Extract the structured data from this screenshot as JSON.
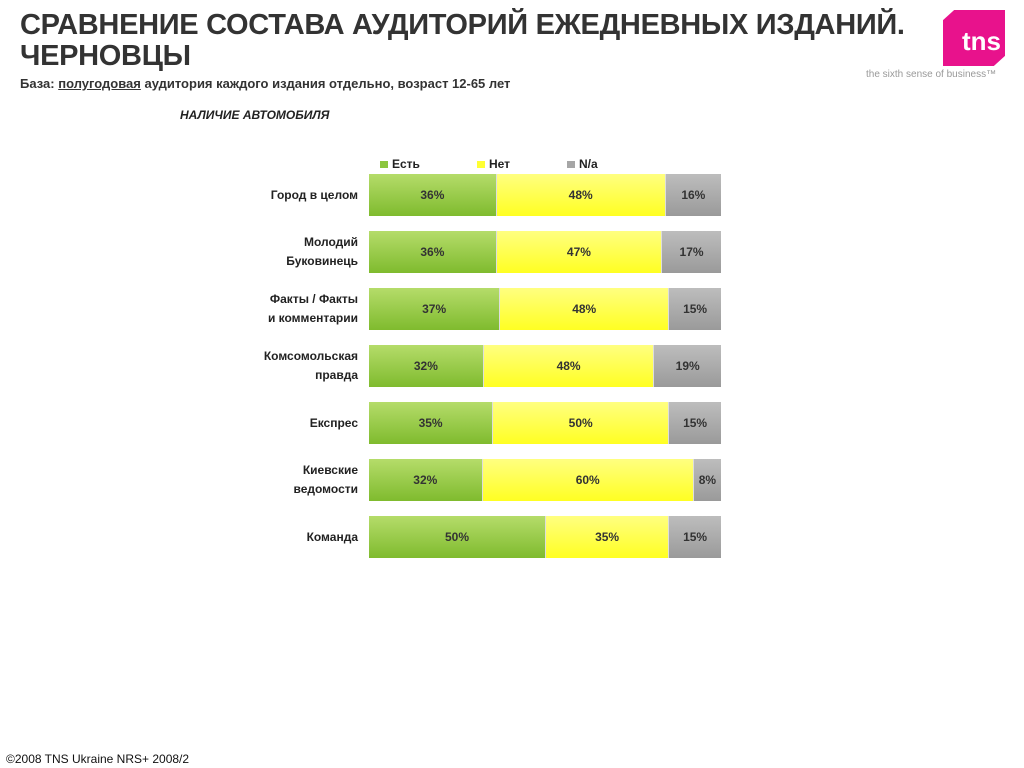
{
  "header": {
    "title_line1": "СРАВНЕНИЕ СОСТАВА АУДИТОРИЙ ЕЖЕДНЕВНЫХ ИЗДАНИЙ.",
    "title_line2": "ЧЕРНОВЦЫ",
    "base_label": "База:",
    "base_underlined": "полугодовая",
    "base_rest": "аудитория каждого издания отдельно, возраст 12-65 лет"
  },
  "logo": {
    "text": "tns",
    "tagline": "the sixth sense of business™"
  },
  "footer": "©2008 TNS Ukraine  NRS+ 2008/2",
  "chart_data": {
    "type": "bar",
    "stacked": true,
    "orientation": "horizontal",
    "title": "НАЛИЧИЕ АВТОМОБИЛЯ",
    "legend_position": "top",
    "categories": [
      "Город в целом",
      "Молодий Буковинець",
      "Факты / Факты и комментарии",
      "Комсомольская правда",
      "Експрес",
      "Киевские ведомости",
      "Команда"
    ],
    "series": [
      {
        "name": "Есть",
        "color": "#8cc63f",
        "values": [
          36,
          36,
          37,
          32,
          35,
          32,
          50
        ]
      },
      {
        "name": "Нет",
        "color": "#ffff33",
        "values": [
          48,
          47,
          48,
          48,
          50,
          60,
          35
        ]
      },
      {
        "name": "N/a",
        "color": "#a6a6a6",
        "values": [
          16,
          17,
          15,
          19,
          15,
          8,
          15
        ]
      }
    ],
    "unit": "%"
  }
}
